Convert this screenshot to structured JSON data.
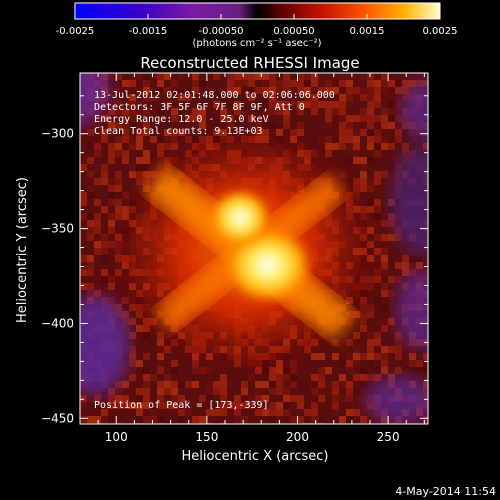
{
  "chart_data": {
    "type": "heatmap",
    "title": "Reconstructed RHESSI Image",
    "xlabel": "Heliocentric X (arcsec)",
    "ylabel": "Heliocentric Y (arcsec)",
    "xlim": [
      80,
      272
    ],
    "ylim": [
      -453,
      -268
    ],
    "x_ticks": [
      100,
      150,
      200,
      250
    ],
    "y_ticks": [
      -300,
      -350,
      -400,
      -450
    ],
    "colorbar": {
      "range": [
        -0.0025,
        0.0025
      ],
      "ticks": [
        "-0.0025",
        "-0.0015",
        "-0.00050",
        "0.00050",
        "0.0015",
        "0.0025"
      ],
      "tick_values": [
        -0.0025,
        -0.0015,
        -0.0005,
        0.0005,
        0.0015,
        0.0025
      ],
      "unit_label": "(photons cm⁻² s⁻¹ asec⁻²)"
    },
    "info_lines": [
      "13-Jul-2012 02:01:48.000 to 02:06:06.000",
      "Detectors: 3F 5F 6F 7F 8F 9F, Att 0",
      "Energy Range: 12.0 - 25.0 keV",
      "Clean     Total counts: 9.13E+03"
    ],
    "peak_label": "Position of Peak = [173,-339]",
    "peak": [
      173,
      -339
    ]
  },
  "footer_date": "4-May-2014 11:54"
}
